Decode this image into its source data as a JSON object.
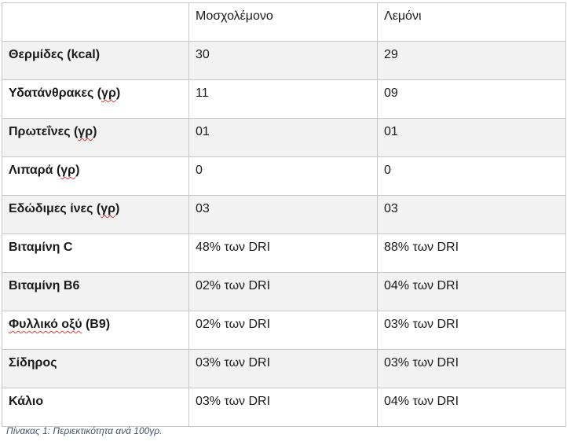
{
  "table": {
    "columns": [
      "",
      "Μοσχολέμονο",
      "Λεμόνι"
    ],
    "rows": [
      {
        "label_main": "Θερμίδες (kcal)",
        "label_flag": "",
        "label_tail": "",
        "moscholemono": "30",
        "lemoni": "29"
      },
      {
        "label_main": "Υδατάνθρακες (",
        "label_flag": "γρ",
        "label_tail": ")",
        "moscholemono": "11",
        "lemoni": "09"
      },
      {
        "label_main": "Πρωτεΐνες (",
        "label_flag": "γρ",
        "label_tail": ")",
        "moscholemono": "01",
        "lemoni": "01"
      },
      {
        "label_main": "Λιπαρά (",
        "label_flag": "γρ",
        "label_tail": ")",
        "moscholemono": "0",
        "lemoni": "0"
      },
      {
        "label_main": "Εδώδιμες ίνες (",
        "label_flag": "γρ",
        "label_tail": ")",
        "moscholemono": "03",
        "lemoni": "03"
      },
      {
        "label_main": "Βιταμίνη C",
        "label_flag": "",
        "label_tail": "",
        "moscholemono": "48% των DRI",
        "lemoni": "88% των DRI"
      },
      {
        "label_main": "Βιταμίνη Β6",
        "label_flag": "",
        "label_tail": "",
        "moscholemono": "02% των DRI",
        "lemoni": "04% των DRI"
      },
      {
        "label_main": "",
        "label_flag": "Φυλλικό οξύ",
        "label_tail": " (Β9)",
        "moscholemono": "02% των DRI",
        "lemoni": "03% των DRI"
      },
      {
        "label_main": "Σίδηρος",
        "label_flag": "",
        "label_tail": "",
        "moscholemono": "03% των DRI",
        "lemoni": "03% των DRI"
      },
      {
        "label_main": "Κάλιο",
        "label_flag": "",
        "label_tail": "",
        "moscholemono": "03% των DRI",
        "lemoni": "04% των DRI"
      }
    ]
  },
  "caption": "Πίνακας  1: Περιεκτικότητα ανά 100γρ."
}
